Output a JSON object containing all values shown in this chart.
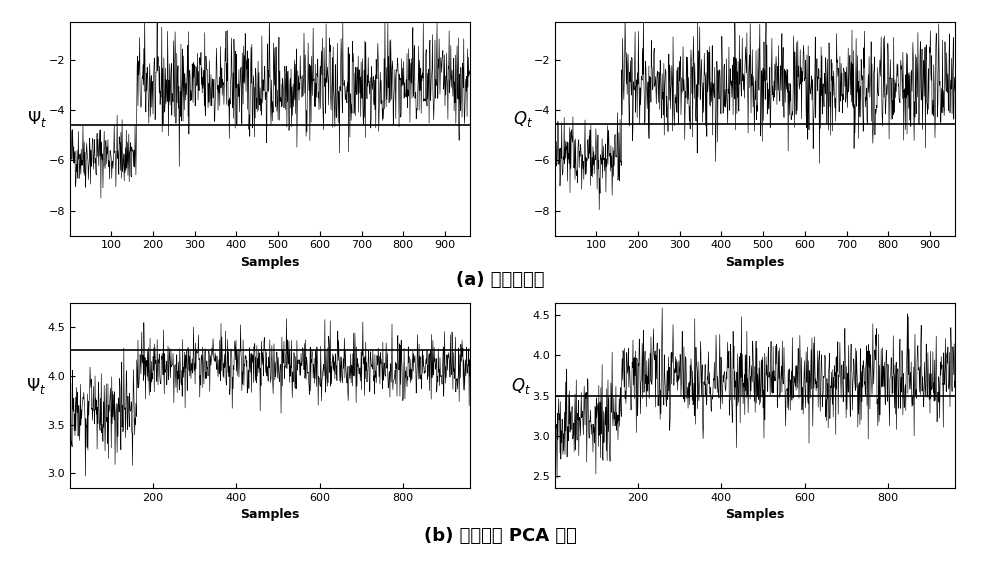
{
  "n_samples": 960,
  "fault_start": 160,
  "top_left": {
    "ylabel": "$\\mathit{\\Psi}_t$",
    "xlabel": "Samples",
    "ylim": [
      -9.0,
      -0.5
    ],
    "yticks": [
      -8,
      -6,
      -4,
      -2
    ],
    "threshold": -4.6,
    "phase1_mean": -5.8,
    "phase1_std": 0.65,
    "phase2_mean": -3.0,
    "phase2_std": 1.0,
    "xticks": [
      100,
      200,
      300,
      400,
      500,
      600,
      700,
      800,
      900
    ],
    "xlim": [
      1,
      960
    ]
  },
  "top_right": {
    "ylabel": "$\\mathit{Q}_t$",
    "xlabel": "Samples",
    "ylim": [
      -9.0,
      -0.5
    ],
    "yticks": [
      -8,
      -6,
      -4,
      -2
    ],
    "threshold": -4.55,
    "phase1_mean": -5.85,
    "phase1_std": 0.7,
    "phase2_mean": -3.0,
    "phase2_std": 1.05,
    "xticks": [
      100,
      200,
      300,
      400,
      500,
      600,
      700,
      800,
      900
    ],
    "xlim": [
      1,
      960
    ]
  },
  "bot_left": {
    "ylabel": "$\\mathit{\\Psi}_t$",
    "xlabel": "Samples",
    "ylim": [
      2.85,
      4.75
    ],
    "yticks": [
      3.0,
      3.5,
      4.0,
      4.5
    ],
    "threshold": 4.27,
    "phase1_mean": 3.65,
    "phase1_std": 0.22,
    "phase2_mean": 4.1,
    "phase2_std": 0.16,
    "xticks": [
      200,
      400,
      600,
      800
    ],
    "xlim": [
      1,
      960
    ]
  },
  "bot_right": {
    "ylabel": "$\\mathit{Q}_t$",
    "xlabel": "Samples",
    "ylim": [
      2.35,
      4.65
    ],
    "yticks": [
      2.5,
      3.0,
      3.5,
      4.0,
      4.5
    ],
    "threshold": 3.5,
    "phase1_mean": 3.2,
    "phase1_std": 0.28,
    "phase2_mean": 3.72,
    "phase2_std": 0.28,
    "xticks": [
      200,
      400,
      600,
      800
    ],
    "xlim": [
      1,
      960
    ]
  },
  "caption_a": "(a) 本发明方法",
  "caption_b": "(b) 传统动态 PCA 方法",
  "line_color": "#000000",
  "threshold_color": "#000000",
  "bg_color": "#ffffff",
  "font_size_ylabel": 12,
  "font_size_xlabel": 9,
  "font_size_caption": 13,
  "font_size_tick": 8
}
